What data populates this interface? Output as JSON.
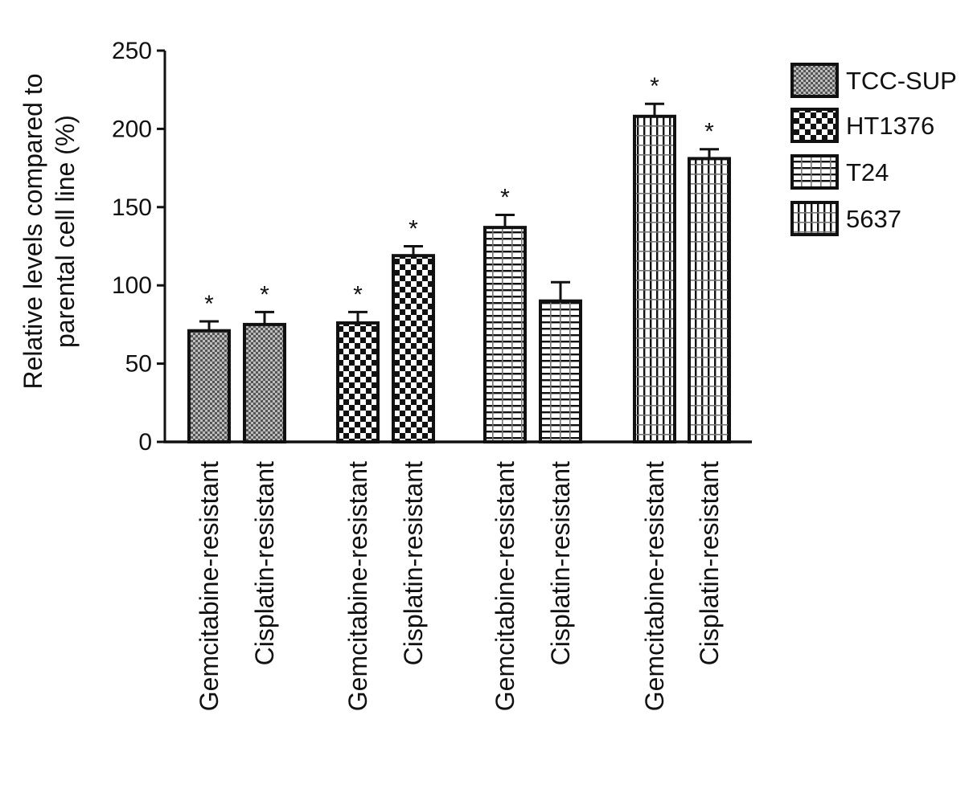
{
  "chart_data": {
    "type": "bar",
    "title": "",
    "xlabel": "",
    "ylabel": "Relative levels compared to parental cell line (%)",
    "ylabel_lines": [
      "Relative levels compared to",
      "parental cell line (%)"
    ],
    "ylim": [
      0,
      250
    ],
    "yticks": [
      "0",
      "50",
      "100",
      "150",
      "200",
      "250"
    ],
    "ytick_values": [
      0,
      50,
      100,
      150,
      200,
      250
    ],
    "legend_position": "top-right",
    "series": [
      {
        "name": "TCC-SUP",
        "pattern": "fine-crosshatch",
        "categories": [
          "Gemcitabine-resistant",
          "Cisplatin-resistant"
        ],
        "values": [
          71,
          75
        ],
        "errors": [
          6,
          8
        ],
        "significance": [
          "*",
          "*"
        ]
      },
      {
        "name": "HT1376",
        "pattern": "checkerboard",
        "categories": [
          "Gemcitabine-resistant",
          "Cisplatin-resistant"
        ],
        "values": [
          76,
          119
        ],
        "errors": [
          7,
          6
        ],
        "significance": [
          "*",
          "*"
        ]
      },
      {
        "name": "T24",
        "pattern": "horizontal-lines",
        "categories": [
          "Gemcitabine-resistant",
          "Cisplatin-resistant"
        ],
        "values": [
          137,
          90
        ],
        "errors": [
          8,
          12
        ],
        "significance": [
          "*",
          ""
        ]
      },
      {
        "name": "5637",
        "pattern": "vertical-lines",
        "categories": [
          "Gemcitabine-resistant",
          "Cisplatin-resistant"
        ],
        "values": [
          208,
          181
        ],
        "errors": [
          8,
          6
        ],
        "significance": [
          "*",
          "*"
        ]
      }
    ],
    "colors": {
      "ink": "#111111",
      "fill": "#ffffff"
    }
  }
}
